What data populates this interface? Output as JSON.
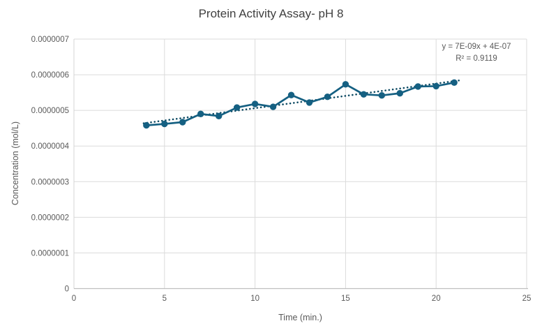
{
  "chart_data": {
    "type": "line",
    "title": "Protein Activity Assay- pH 8",
    "xlabel": "Time (min.)",
    "ylabel": "Concentration (mol/L)",
    "xlim": [
      0,
      25
    ],
    "ylim": [
      0,
      7e-07
    ],
    "x_ticks": [
      0,
      5,
      10,
      15,
      20,
      25
    ],
    "y_tick_values": [
      0,
      1e-07,
      2e-07,
      3e-07,
      4e-07,
      5e-07,
      6e-07,
      7e-07
    ],
    "y_tick_labels": [
      "0",
      "0.0000001",
      "0.0000002",
      "0.0000003",
      "0.0000004",
      "0.0000005",
      "0.0000006",
      "0.0000007"
    ],
    "grid": true,
    "legend": "none",
    "series": [
      {
        "name": "Concentration",
        "marker": "circle",
        "x": [
          4,
          5,
          6,
          7,
          8,
          9,
          10,
          11,
          12,
          13,
          14,
          15,
          16,
          17,
          18,
          19,
          20,
          21
        ],
        "y": [
          4.58e-07,
          4.62e-07,
          4.67e-07,
          4.9e-07,
          4.84e-07,
          5.08e-07,
          5.18e-07,
          5.1e-07,
          5.43e-07,
          5.22e-07,
          5.38e-07,
          5.73e-07,
          5.45e-07,
          5.42e-07,
          5.48e-07,
          5.67e-07,
          5.68e-07,
          5.78e-07
        ]
      }
    ],
    "trendline": {
      "type": "linear",
      "style": "dotted",
      "equation": "y = 7E-09x + 4E-07",
      "r_squared": "R² = 0.9119"
    }
  },
  "colors": {
    "series": "#156082",
    "trendline": "#0d4a63",
    "gridline": "#dbdbdb",
    "plot_border": "#d4d4d4",
    "axis_line": "#bfbfbf",
    "title_text": "#3f3f3f",
    "axis_text": "#595959"
  }
}
